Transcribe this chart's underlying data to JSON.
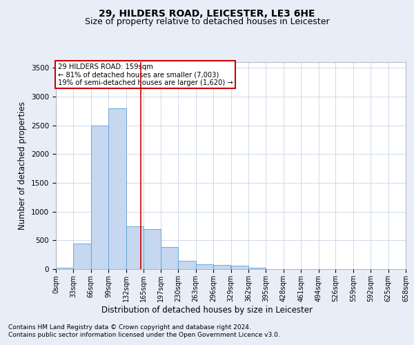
{
  "title1": "29, HILDERS ROAD, LEICESTER, LE3 6HE",
  "title2": "Size of property relative to detached houses in Leicester",
  "xlabel": "Distribution of detached houses by size in Leicester",
  "ylabel": "Number of detached properties",
  "footnote1": "Contains HM Land Registry data © Crown copyright and database right 2024.",
  "footnote2": "Contains public sector information licensed under the Open Government Licence v3.0.",
  "annotation_line1": "29 HILDERS ROAD: 159sqm",
  "annotation_line2": "← 81% of detached houses are smaller (7,003)",
  "annotation_line3": "19% of semi-detached houses are larger (1,620) →",
  "bin_edges": [
    0,
    33,
    66,
    99,
    132,
    165,
    197,
    230,
    263,
    296,
    329,
    362,
    395,
    428,
    461,
    494,
    526,
    559,
    592,
    625,
    658
  ],
  "bar_heights": [
    20,
    450,
    2500,
    2800,
    750,
    700,
    390,
    140,
    80,
    70,
    60,
    20,
    0,
    0,
    0,
    0,
    0,
    0,
    0,
    0
  ],
  "bar_color": "#c5d8f0",
  "bar_edge_color": "#5a9fd4",
  "red_line_x": 159,
  "ylim": [
    0,
    3600
  ],
  "yticks": [
    0,
    500,
    1000,
    1500,
    2000,
    2500,
    3000,
    3500
  ],
  "background_color": "#e8eef7",
  "plot_background": "#ffffff",
  "grid_color": "#c8d4e8",
  "annotation_box_color": "#cc0000",
  "title1_fontsize": 10,
  "title2_fontsize": 9,
  "tick_fontsize": 7.5,
  "label_fontsize": 8.5,
  "footnote_fontsize": 6.5
}
